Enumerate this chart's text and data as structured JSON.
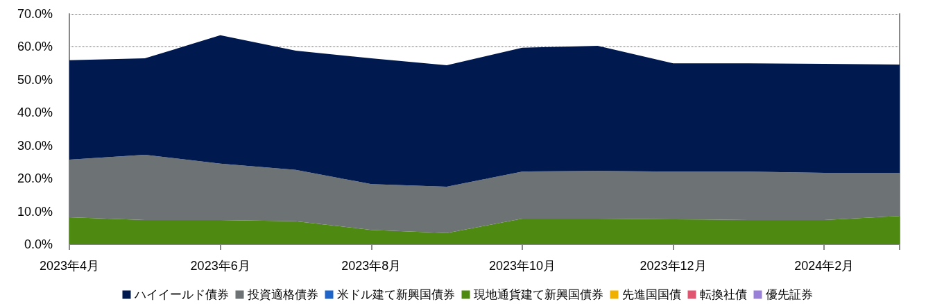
{
  "chart_data": {
    "type": "area",
    "stacked": true,
    "categories": [
      "2023年4月",
      null,
      "2023年6月",
      null,
      "2023年8月",
      null,
      "2023年10月",
      null,
      "2023年12月",
      null,
      "2024年2月",
      null
    ],
    "series": [
      {
        "name": "優先証券",
        "color": "#9a80d8",
        "values": [
          null,
          null,
          null,
          null,
          null,
          null,
          null,
          null,
          null,
          null,
          null,
          null
        ]
      },
      {
        "name": "転換社債",
        "color": "#e05570",
        "values": [
          null,
          null,
          null,
          null,
          null,
          null,
          null,
          null,
          null,
          null,
          null,
          null
        ]
      },
      {
        "name": "先進国国債",
        "color": "#f0b000",
        "values": [
          null,
          null,
          null,
          null,
          null,
          null,
          null,
          null,
          null,
          null,
          null,
          null
        ]
      },
      {
        "name": "現地通貨建て新興国債券",
        "color": "#4e8a12",
        "values": [
          8.2,
          7.4,
          7.4,
          7.0,
          4.4,
          3.4,
          7.8,
          7.8,
          7.6,
          7.4,
          7.4,
          8.6
        ]
      },
      {
        "name": "米ドル建て新興国債券",
        "color": "#1f64c8",
        "values": [
          null,
          null,
          null,
          null,
          null,
          null,
          null,
          null,
          null,
          null,
          null,
          null
        ]
      },
      {
        "name": "投資適格債券",
        "color": "#6d7275",
        "values": [
          17.5,
          19.8,
          17.1,
          15.6,
          13.9,
          14.1,
          14.3,
          14.5,
          14.5,
          14.7,
          14.3,
          13.1
        ]
      },
      {
        "name": "ハイイールド債券",
        "color": "#001a4f",
        "values": [
          30.2,
          29.3,
          39.0,
          36.2,
          38.2,
          36.9,
          37.6,
          38.0,
          32.9,
          32.9,
          33.1,
          32.9
        ]
      }
    ],
    "ylim": [
      0,
      70
    ],
    "yticks": [
      {
        "value": 0,
        "label": "0.0%"
      },
      {
        "value": 10,
        "label": "10.0%"
      },
      {
        "value": 20,
        "label": "20.0%"
      },
      {
        "value": 30,
        "label": "30.0%"
      },
      {
        "value": 40,
        "label": "40.0%"
      },
      {
        "value": 50,
        "label": "50.0%"
      },
      {
        "value": 60,
        "label": "60.0%"
      },
      {
        "value": 70,
        "label": "70.0%"
      }
    ],
    "grid": "y",
    "line_style": "dotted",
    "legend": "bottom",
    "marker": "none"
  }
}
